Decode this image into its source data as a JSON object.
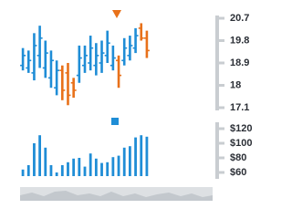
{
  "chart_data": [
    {
      "type": "ohlc",
      "up_color": "#1f8dd6",
      "down_color": "#e8711a",
      "open": [
        18.8,
        18.7,
        18.5,
        19.2,
        18.7,
        18.3,
        17.9,
        18.6,
        18.5,
        18.1,
        18.4,
        18.8,
        18.9,
        18.8,
        18.9,
        19.2,
        18.8,
        19.0,
        19.0,
        19.2,
        19.5,
        20.3,
        19.9
      ],
      "high": [
        19.5,
        19.4,
        20.1,
        20.4,
        19.8,
        19.4,
        19.0,
        18.8,
        18.9,
        18.3,
        19.6,
        19.6,
        20.0,
        19.7,
        19.8,
        20.2,
        19.6,
        19.2,
        19.9,
        20.0,
        20.3,
        20.5,
        20.2
      ],
      "low": [
        18.6,
        18.5,
        18.2,
        18.7,
        18.3,
        17.9,
        17.6,
        17.4,
        17.2,
        17.5,
        18.1,
        18.5,
        18.6,
        18.4,
        18.5,
        18.9,
        18.6,
        17.9,
        18.8,
        19.0,
        19.3,
        19.8,
        19.1
      ],
      "close": [
        19.2,
        19.0,
        19.6,
        19.9,
        19.3,
        19.0,
        18.6,
        17.8,
        17.6,
        17.8,
        19.1,
        19.2,
        19.5,
        19.2,
        19.3,
        19.7,
        19.1,
        18.4,
        19.5,
        19.6,
        20.0,
        19.9,
        19.4
      ],
      "ylim": [
        17.1,
        20.7
      ],
      "yticks": [
        20.7,
        19.8,
        18.9,
        18,
        17.1
      ]
    },
    {
      "type": "bar",
      "color": "#1f8dd6",
      "values": [
        64,
        70,
        100,
        111,
        94,
        70,
        60,
        70,
        74,
        79,
        80,
        68,
        86,
        79,
        73,
        74,
        81,
        83,
        94,
        96,
        108,
        111,
        109
      ],
      "ylim": [
        55,
        125
      ],
      "yticks": [
        {
          "value": 120,
          "label": "$120"
        },
        {
          "value": 100,
          "label": "$100"
        },
        {
          "value": 80,
          "label": "$80"
        },
        {
          "value": 60,
          "label": "$60"
        }
      ]
    }
  ]
}
